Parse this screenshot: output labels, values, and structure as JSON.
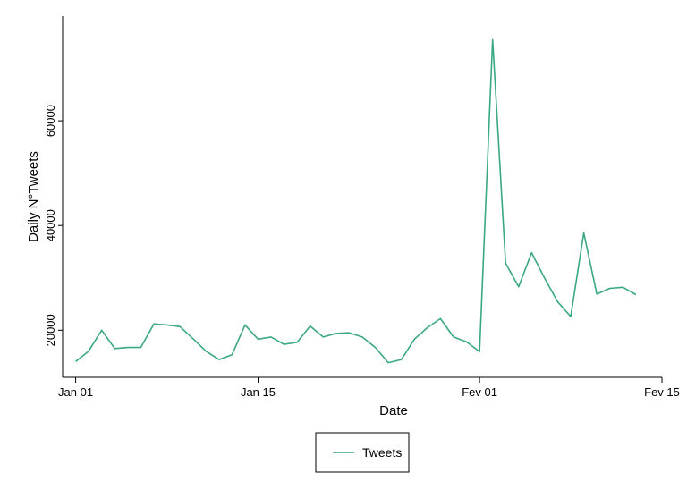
{
  "chart_data": {
    "type": "line",
    "xlabel": "Date",
    "ylabel": "Daily N°Tweets",
    "x_ticks": [
      "Jan 01",
      "Jan 15",
      "Fev 01",
      "Fev 15"
    ],
    "y_ticks": [
      "20000",
      "40000",
      "60000"
    ],
    "y_tick_values": [
      20000,
      40000,
      60000
    ],
    "ylim": [
      11000,
      80000
    ],
    "xlim": [
      "2020-12-31",
      "2021-02-15"
    ],
    "grid": false,
    "legend_position": "bottom",
    "series": [
      {
        "name": "Tweets",
        "color": "#3aa882",
        "x": [
          "2021-01-01",
          "2021-01-02",
          "2021-01-03",
          "2021-01-04",
          "2021-01-05",
          "2021-01-06",
          "2021-01-07",
          "2021-01-08",
          "2021-01-09",
          "2021-01-10",
          "2021-01-11",
          "2021-01-12",
          "2021-01-13",
          "2021-01-14",
          "2021-01-15",
          "2021-01-16",
          "2021-01-17",
          "2021-01-18",
          "2021-01-19",
          "2021-01-20",
          "2021-01-21",
          "2021-01-22",
          "2021-01-23",
          "2021-01-24",
          "2021-01-25",
          "2021-01-26",
          "2021-01-27",
          "2021-01-28",
          "2021-01-29",
          "2021-01-30",
          "2021-01-31",
          "2021-02-01",
          "2021-02-02",
          "2021-02-03",
          "2021-02-04",
          "2021-02-05",
          "2021-02-06",
          "2021-02-07",
          "2021-02-08",
          "2021-02-09",
          "2021-02-10",
          "2021-02-11",
          "2021-02-12",
          "2021-02-13"
        ],
        "values": [
          14000,
          16000,
          20000,
          16500,
          16700,
          16700,
          21200,
          21000,
          20700,
          18400,
          16000,
          14400,
          15300,
          21000,
          18300,
          18700,
          17300,
          17700,
          20800,
          18700,
          19400,
          19500,
          18700,
          16700,
          13800,
          14400,
          18300,
          20500,
          22200,
          18700,
          17800,
          15900,
          75500,
          32800,
          28300,
          34800,
          29900,
          25400,
          22600,
          38600,
          26900,
          28000,
          28200,
          26800
        ]
      }
    ]
  }
}
